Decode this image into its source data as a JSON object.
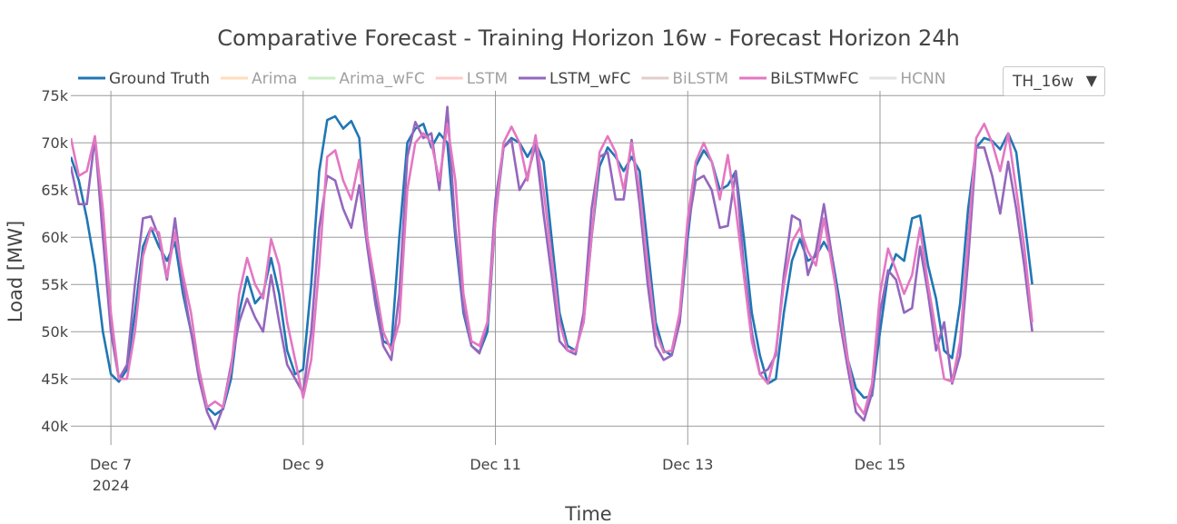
{
  "chart_data": {
    "type": "line",
    "title": "Comparative Forecast - Training Horizon 16w - Forecast Horizon 24h",
    "xlabel": "Time",
    "ylabel": "Load [MW]",
    "x_start": "2024-12-06 14:00",
    "x_step_hours": 2,
    "xlim": [
      "2024-12-06 14:00",
      "2024-12-17 08:00"
    ],
    "ylim": [
      38000,
      75500
    ],
    "x_ticks": [
      {
        "date": "2024-12-07 00:00",
        "label": "Dec 7",
        "sublabel": "2024"
      },
      {
        "date": "2024-12-09 00:00",
        "label": "Dec 9",
        "sublabel": ""
      },
      {
        "date": "2024-12-11 00:00",
        "label": "Dec 11",
        "sublabel": ""
      },
      {
        "date": "2024-12-13 00:00",
        "label": "Dec 13",
        "sublabel": ""
      },
      {
        "date": "2024-12-15 00:00",
        "label": "Dec 15",
        "sublabel": ""
      }
    ],
    "y_ticks": [
      {
        "value": 40000,
        "label": "40k"
      },
      {
        "value": 45000,
        "label": "45k"
      },
      {
        "value": 50000,
        "label": "50k"
      },
      {
        "value": 55000,
        "label": "55k"
      },
      {
        "value": 60000,
        "label": "60k"
      },
      {
        "value": 65000,
        "label": "65k"
      },
      {
        "value": 70000,
        "label": "70k"
      },
      {
        "value": 75000,
        "label": "75k"
      }
    ],
    "grid": true,
    "legend_position": "top",
    "series": [
      {
        "name": "Ground Truth",
        "color": "#1f77b4",
        "visible": true,
        "values": [
          68500,
          66000,
          62000,
          57000,
          50000,
          45500,
          44700,
          46000,
          52000,
          59000,
          61000,
          59000,
          57500,
          59500,
          54000,
          50000,
          46000,
          42000,
          41200,
          41800,
          45000,
          52000,
          55800,
          53000,
          54000,
          57800,
          54000,
          48000,
          45500,
          46000,
          55000,
          67000,
          72400,
          72800,
          71500,
          72300,
          70500,
          60000,
          53500,
          49000,
          48500,
          60000,
          70000,
          71500,
          72000,
          69500,
          71000,
          70000,
          60000,
          52000,
          48500,
          47800,
          50000,
          62000,
          69500,
          70500,
          70000,
          68500,
          70000,
          68000,
          60000,
          52000,
          48500,
          48000,
          51000,
          60000,
          67500,
          69500,
          68500,
          67000,
          68500,
          67000,
          59000,
          51000,
          48000,
          47500,
          51000,
          60000,
          67500,
          69200,
          68000,
          65000,
          65500,
          67000,
          60000,
          52000,
          47500,
          44500,
          45000,
          52000,
          57500,
          59800,
          57500,
          58000,
          59500,
          58000,
          53000,
          47000,
          44000,
          43000,
          43200,
          50000,
          56000,
          58200,
          57500,
          62000,
          62300,
          57000,
          53500,
          48000,
          47200,
          53000,
          63000,
          69500,
          70500,
          70200,
          69300,
          71000,
          69000,
          62000,
          55000
        ]
      },
      {
        "name": "Arima",
        "color": "#ffbb78",
        "visible": false,
        "values": []
      },
      {
        "name": "Arima_wFC",
        "color": "#98df8a",
        "visible": false,
        "values": []
      },
      {
        "name": "LSTM",
        "color": "#ff9896",
        "visible": false,
        "values": []
      },
      {
        "name": "LSTM_wFC",
        "color": "#9467bd",
        "visible": true,
        "values": [
          67500,
          63500,
          63500,
          70500,
          60000,
          50000,
          45000,
          46500,
          55000,
          62000,
          62200,
          60000,
          55500,
          62000,
          55000,
          50000,
          45000,
          41500,
          39700,
          42000,
          46500,
          51000,
          53500,
          51500,
          50000,
          56000,
          51000,
          46500,
          45000,
          43500,
          50000,
          61000,
          66500,
          66000,
          63000,
          61000,
          65500,
          59000,
          53000,
          48500,
          47000,
          54000,
          68500,
          72200,
          70500,
          71000,
          65000,
          73800,
          61000,
          52500,
          48500,
          47700,
          51000,
          64000,
          69500,
          70300,
          65000,
          66500,
          69800,
          62500,
          56000,
          49000,
          48000,
          47600,
          52000,
          63000,
          68500,
          69000,
          64000,
          64000,
          70300,
          63500,
          55000,
          48500,
          47000,
          47500,
          51000,
          61000,
          66000,
          66500,
          65000,
          61000,
          61200,
          67000,
          57000,
          50000,
          45500,
          46000,
          47500,
          56000,
          62300,
          61800,
          56000,
          58500,
          63500,
          58000,
          51000,
          46000,
          41500,
          40600,
          43500,
          52000,
          56500,
          55500,
          52000,
          52500,
          59000,
          54000,
          48000,
          51000,
          44500,
          47500,
          57500,
          69500,
          69500,
          66500,
          62500,
          68000,
          63000,
          57000,
          50000
        ]
      },
      {
        "name": "BiLSTM",
        "color": "#c49c94",
        "visible": false,
        "values": []
      },
      {
        "name": "BiLSTMwFC",
        "color": "#e377c2",
        "visible": true,
        "values": [
          70500,
          66500,
          67000,
          70700,
          63000,
          52000,
          45000,
          45000,
          50000,
          58000,
          61000,
          60500,
          55800,
          60500,
          56000,
          52000,
          46000,
          42000,
          42600,
          42000,
          46000,
          54000,
          57800,
          55000,
          53500,
          59800,
          57000,
          51000,
          47000,
          43000,
          47000,
          57000,
          68500,
          69200,
          66000,
          64000,
          68200,
          60000,
          55000,
          50000,
          48000,
          51000,
          65000,
          70000,
          71000,
          70000,
          66000,
          72000,
          66000,
          54000,
          49000,
          48500,
          51000,
          62000,
          70000,
          71700,
          70000,
          66000,
          70800,
          65000,
          58000,
          51000,
          48000,
          48000,
          51000,
          60000,
          69000,
          70700,
          69000,
          65000,
          70000,
          65000,
          57000,
          50000,
          47800,
          48000,
          52000,
          62000,
          68000,
          70000,
          68000,
          64000,
          68700,
          63000,
          56000,
          49000,
          45500,
          44500,
          48000,
          55000,
          59500,
          61000,
          58500,
          57000,
          62000,
          57000,
          52000,
          47000,
          42500,
          41300,
          44500,
          54000,
          58800,
          56500,
          54000,
          56000,
          61000,
          55000,
          50000,
          45000,
          44700,
          49000,
          60000,
          70500,
          72000,
          70000,
          67000,
          71000,
          65000,
          59000,
          51000
        ]
      },
      {
        "name": "HCNN",
        "color": "#c7c7c7",
        "visible": false,
        "values": []
      }
    ]
  },
  "dropdown": {
    "label": "TH_16w",
    "arrow": "▼"
  }
}
